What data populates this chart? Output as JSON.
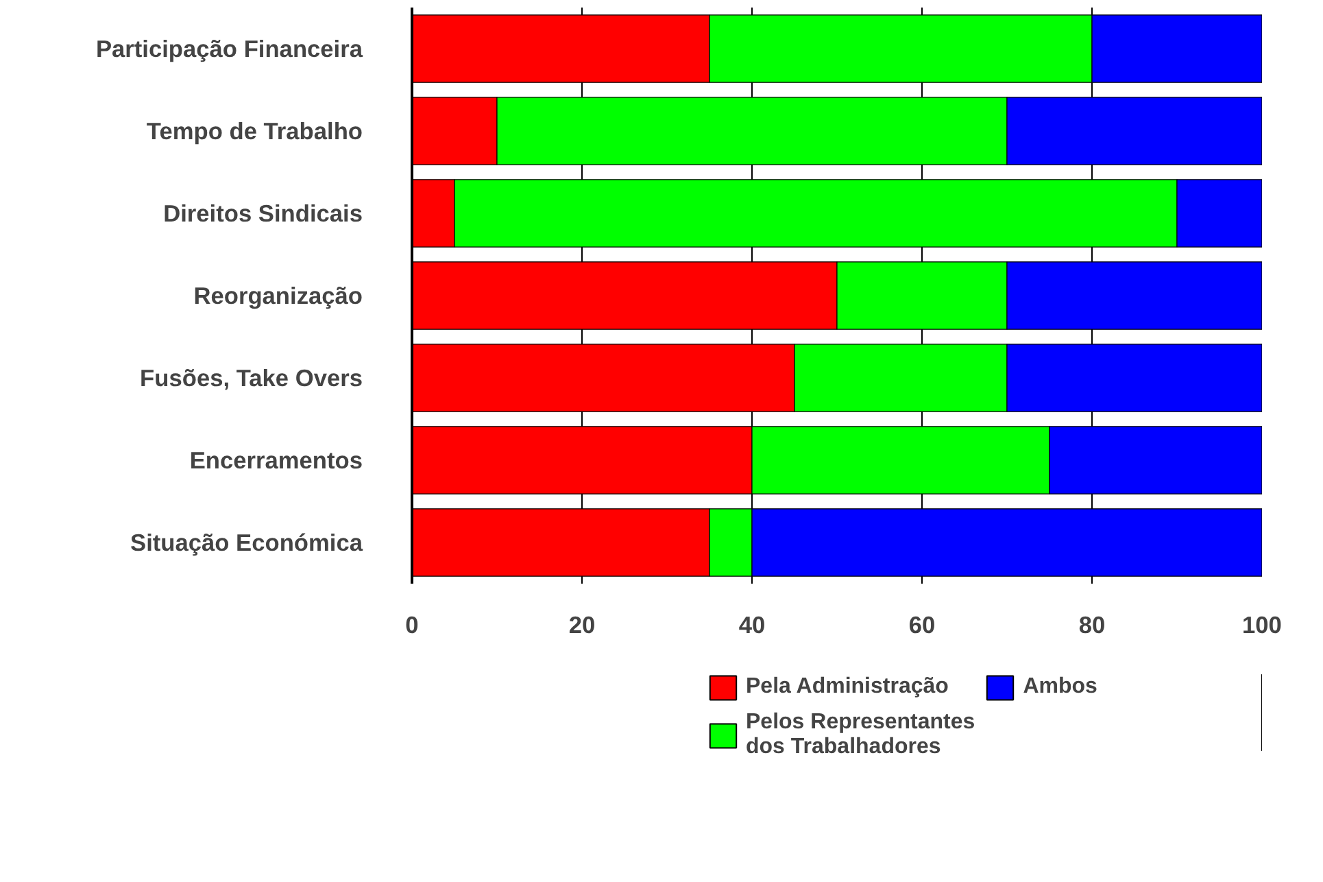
{
  "chart_data": {
    "type": "bar",
    "orientation": "horizontal",
    "stacked": true,
    "categories": [
      "Participação Financeira",
      "Tempo de Trabalho",
      "Direitos Sindicais",
      "Reorganização",
      "Fusões, Take Overs",
      "Encerramentos",
      "Situação Económica"
    ],
    "series": [
      {
        "name": "Pela Administração",
        "color": "#ff0000",
        "values": [
          35,
          10,
          5,
          50,
          45,
          40,
          35
        ]
      },
      {
        "name": "Pelos Representantes dos Trabalhadores",
        "color": "#00ff00",
        "values": [
          45,
          60,
          85,
          20,
          25,
          35,
          5
        ]
      },
      {
        "name": "Ambos",
        "color": "#0000ff",
        "values": [
          20,
          30,
          10,
          30,
          30,
          25,
          60
        ]
      }
    ],
    "xlim": [
      0,
      100
    ],
    "xticks": [
      0,
      20,
      40,
      60,
      80,
      100
    ],
    "grid": "x",
    "legend": "bottom"
  }
}
